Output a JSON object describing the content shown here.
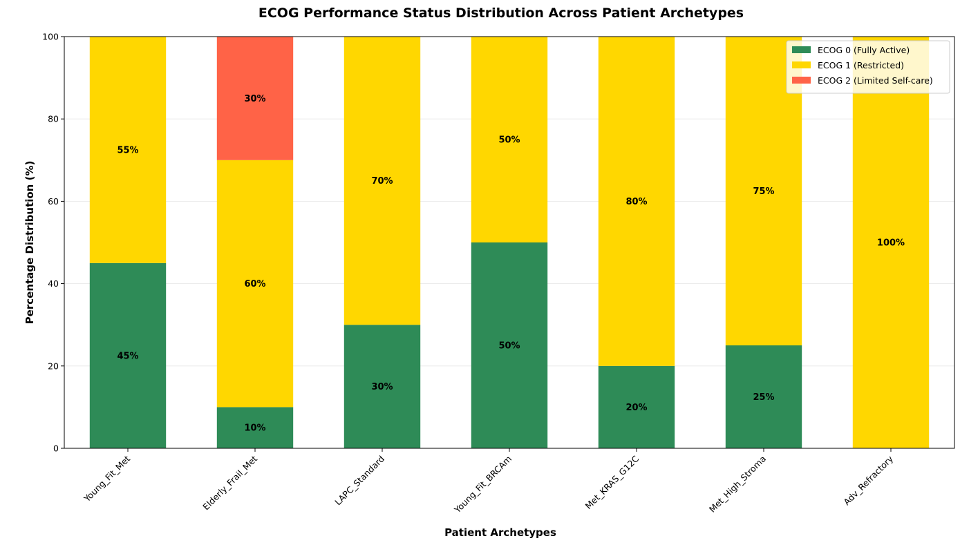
{
  "chart_data": {
    "type": "bar",
    "stacked": true,
    "title": "ECOG Performance Status Distribution Across Patient Archetypes",
    "xlabel": "Patient Archetypes",
    "ylabel": "Percentage Distribution (%)",
    "ylim": [
      0,
      100
    ],
    "yticks": [
      0,
      20,
      40,
      60,
      80,
      100
    ],
    "grid": "y",
    "legend_position": "top-right",
    "categories": [
      "Young_Fit_Met",
      "Elderly_Frail_Met",
      "LAPC_Standard",
      "Young_Fit_BRCAm",
      "Met_KRAS_G12C",
      "Met_High_Stroma",
      "Adv_Refractory"
    ],
    "series": [
      {
        "name": "ECOG 0 (Fully Active)",
        "color": "#2e8b57",
        "values": [
          45,
          10,
          30,
          50,
          20,
          25,
          0
        ]
      },
      {
        "name": "ECOG 1 (Restricted)",
        "color": "#ffd700",
        "values": [
          55,
          60,
          70,
          50,
          80,
          75,
          100
        ]
      },
      {
        "name": "ECOG 2 (Limited Self-care)",
        "color": "#ff6347",
        "values": [
          0,
          30,
          0,
          0,
          0,
          0,
          0
        ]
      }
    ],
    "value_suffix": "%"
  }
}
